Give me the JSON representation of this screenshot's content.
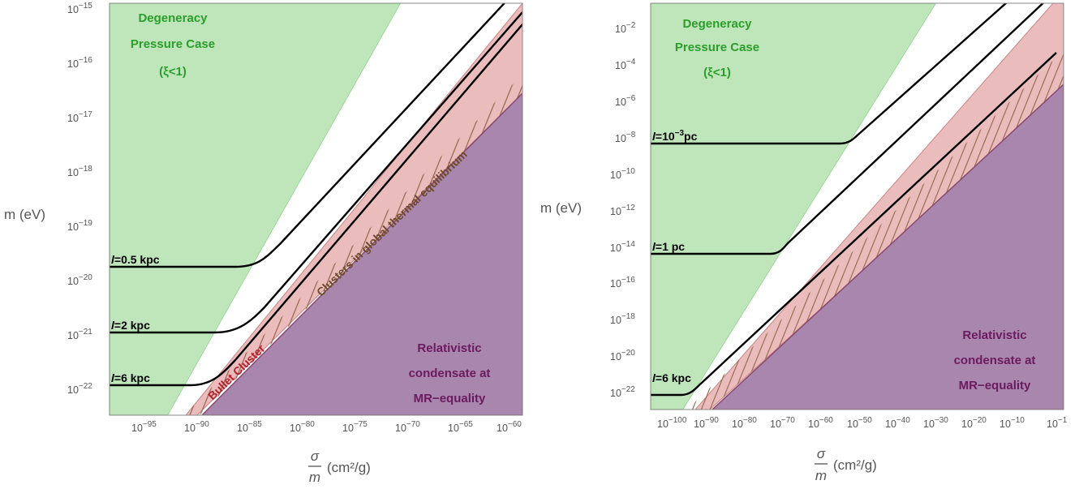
{
  "chart_data": [
    {
      "type": "line",
      "xlabel_top": "σ",
      "xlabel_bottom": "m",
      "xlabel_unit": "(cm²/g)",
      "ylabel": "m (eV)",
      "x_log_range": [
        -99,
        -59.6
      ],
      "y_log_range": [
        -22.4,
        -14.9
      ],
      "x_ticks": [
        {
          "base": "10",
          "exp": "−95",
          "v": -95
        },
        {
          "base": "10",
          "exp": "−90",
          "v": -90
        },
        {
          "base": "10",
          "exp": "−85",
          "v": -85
        },
        {
          "base": "10",
          "exp": "−80",
          "v": -80
        },
        {
          "base": "10",
          "exp": "−75",
          "v": -75
        },
        {
          "base": "10",
          "exp": "−70",
          "v": -70
        },
        {
          "base": "10",
          "exp": "−65",
          "v": -65
        },
        {
          "base": "10",
          "exp": "−60",
          "v": -60
        }
      ],
      "y_ticks": [
        {
          "base": "10",
          "exp": "−22",
          "v": -22
        },
        {
          "base": "10",
          "exp": "−21",
          "v": -21
        },
        {
          "base": "10",
          "exp": "−20",
          "v": -20
        },
        {
          "base": "10",
          "exp": "−19",
          "v": -19
        },
        {
          "base": "10",
          "exp": "−18",
          "v": -18
        },
        {
          "base": "10",
          "exp": "−17",
          "v": -17
        },
        {
          "base": "10",
          "exp": "−16",
          "v": -16
        },
        {
          "base": "10",
          "exp": "−15",
          "v": -15
        }
      ],
      "regions": {
        "degeneracy": {
          "label_lines": [
            "Degeneracy",
            "Pressure Case",
            "(ξ<1)"
          ],
          "boundary": [
            [
              -96.1,
              -22.4
            ],
            [
              -70.4,
              -14.9
            ]
          ]
        },
        "bullet_cluster": {
          "label": "Bullet Cluster",
          "upper_boundary": [
            [
              -93.1,
              -22.4
            ],
            [
              -59.6,
              -16.2
            ]
          ]
        },
        "global_equilibrium": {
          "label": "Clusters in global thermal equilibrium",
          "boundary": [
            [
              -90.8,
              -22.4
            ],
            [
              -59.6,
              -17.5
            ]
          ]
        },
        "relativistic": {
          "label_lines": [
            "Relativistic",
            "condensate at",
            "MR−equality"
          ],
          "boundary": [
            [
              -90.8,
              -22.4
            ],
            [
              -59.6,
              -17.5
            ]
          ]
        }
      },
      "series": [
        {
          "name": "l=0.5 kpc",
          "label_rest": "=0.5 kpc",
          "plateau": -19.8,
          "points": [
            [
              -99,
              -19.8
            ],
            [
              -86.6,
              -19.8
            ],
            [
              -63.5,
              -14.9
            ]
          ]
        },
        {
          "name": "l=2 kpc",
          "label_rest": "=2 kpc",
          "plateau": -20.95,
          "points": [
            [
              -99,
              -20.95
            ],
            [
              -88.2,
              -20.95
            ],
            [
              -61.7,
              -14.9
            ]
          ]
        },
        {
          "name": "l=6 kpc",
          "label_rest": "=6 kpc",
          "plateau": -22.0,
          "points": [
            [
              -99,
              -22.0
            ],
            [
              -90.6,
              -22.0
            ],
            [
              -59.6,
              -15.25
            ]
          ]
        }
      ]
    },
    {
      "type": "line",
      "xlabel_top": "σ",
      "xlabel_bottom": "m",
      "xlabel_unit": "(cm²/g)",
      "ylabel": "m (eV)",
      "x_log_range": [
        -102.2,
        -1.2
      ],
      "y_log_range": [
        -22.8,
        -0.5
      ],
      "x_ticks": [
        {
          "base": "10",
          "exp": "−100",
          "v": -100
        },
        {
          "base": "10",
          "exp": "−90",
          "v": -90
        },
        {
          "base": "10",
          "exp": "−80",
          "v": -80
        },
        {
          "base": "10",
          "exp": "−70",
          "v": -70
        },
        {
          "base": "10",
          "exp": "−60",
          "v": -60
        },
        {
          "base": "10",
          "exp": "−50",
          "v": -50
        },
        {
          "base": "10",
          "exp": "−40",
          "v": -40
        },
        {
          "base": "10",
          "exp": "−30",
          "v": -30
        },
        {
          "base": "10",
          "exp": "−20",
          "v": -20
        },
        {
          "base": "10",
          "exp": "−10",
          "v": -10
        },
        {
          "base": "10",
          "exp": "−1",
          "v": -1
        }
      ],
      "y_ticks": [
        {
          "base": "10",
          "exp": "−22",
          "v": -22
        },
        {
          "base": "10",
          "exp": "−20",
          "v": -20
        },
        {
          "base": "10",
          "exp": "−18",
          "v": -18
        },
        {
          "base": "10",
          "exp": "−16",
          "v": -16
        },
        {
          "base": "10",
          "exp": "−14",
          "v": -14
        },
        {
          "base": "10",
          "exp": "−12",
          "v": -12
        },
        {
          "base": "10",
          "exp": "−10",
          "v": -10
        },
        {
          "base": "10",
          "exp": "−8",
          "v": -8
        },
        {
          "base": "10",
          "exp": "−6",
          "v": -6
        },
        {
          "base": "10",
          "exp": "−4",
          "v": -4
        },
        {
          "base": "10",
          "exp": "−2",
          "v": -2
        }
      ],
      "regions": {
        "degeneracy": {
          "label_lines": [
            "Degeneracy",
            "Pressure Case",
            "(ξ<1)"
          ],
          "boundary": [
            [
              -93.5,
              -22.8
            ],
            [
              -27.6,
              -0.5
            ]
          ]
        },
        "bullet_cluster": {
          "upper_boundary": [
            [
              -95.6,
              -22.8
            ],
            [
              -1.2,
              -0.5
            ]
          ]
        },
        "relativistic": {
          "label_lines": [
            "Relativistic",
            "condensate at",
            "MR−equality"
          ],
          "boundary": [
            [
              -89.3,
              -22.8
            ],
            [
              -1.2,
              -5.3
            ]
          ]
        }
      },
      "series": [
        {
          "name": "l=10^-3 pc",
          "label_rest": "=10",
          "label_sup": "−3",
          "label_tail": "pc",
          "plateau": -7.7,
          "points": [
            [
              -102.2,
              -7.7
            ],
            [
              -51.4,
              -7.7
            ],
            [
              -10.4,
              -0.5
            ]
          ]
        },
        {
          "name": "l=1 pc",
          "label_rest": "=1 pc",
          "plateau": -13.8,
          "points": [
            [
              -102.2,
              -13.8
            ],
            [
              -71.0,
              -13.8
            ],
            [
              -17.0,
              -0.5
            ]
          ]
        },
        {
          "name": "l=6 kpc",
          "label_rest": "=6 kpc",
          "plateau": -22.3,
          "points": [
            [
              -102.2,
              -22.3
            ],
            [
              -93.5,
              -22.3
            ],
            [
              -1.2,
              -3.8
            ]
          ]
        }
      ]
    }
  ]
}
